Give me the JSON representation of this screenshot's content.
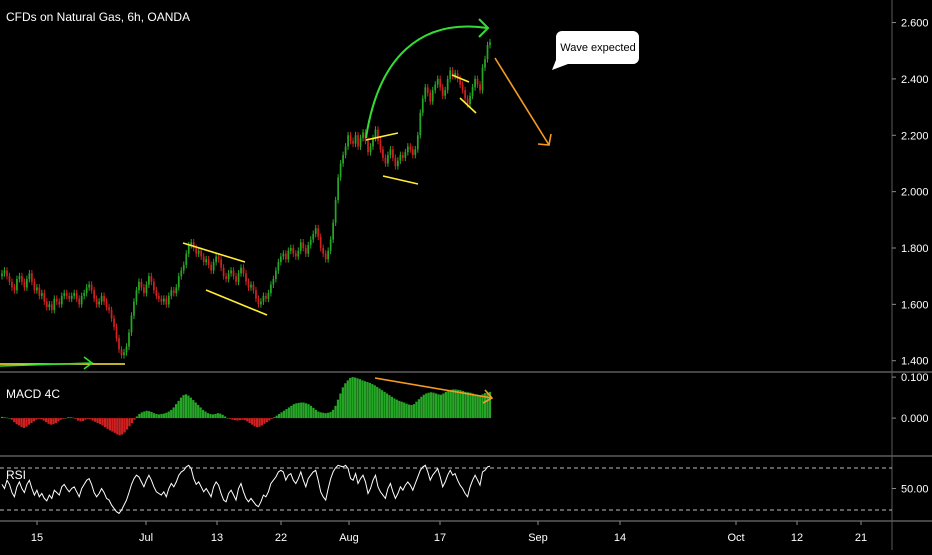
{
  "header": {
    "title": "CFDs on Natural Gas, 6h, OANDA"
  },
  "annotation": {
    "callout_text": "Wave expected"
  },
  "indicators": {
    "macd_label": "MACD 4C",
    "rsi_label": "RSI"
  },
  "colors": {
    "background": "#000000",
    "up": "#26a626",
    "down": "#d02020",
    "pattern_lines": "#ffee33",
    "green_arrow": "#33dd33",
    "orange_arrow": "#f59a23",
    "rsi_line": "#ffffff"
  },
  "chart_data": [
    {
      "type": "candlestick",
      "title": "CFDs on Natural Gas, 6h, OANDA",
      "ylim": [
        1.36,
        2.68
      ],
      "y_ticks": [
        "2.600",
        "2.400",
        "2.200",
        "2.000",
        "1.800",
        "1.600",
        "1.400"
      ],
      "x_ticks": [
        "15",
        "Jul",
        "13",
        "22",
        "Aug",
        "17",
        "Sep",
        "14",
        "Oct",
        "12",
        "21"
      ],
      "close": [
        1.71,
        1.72,
        1.7,
        1.68,
        1.66,
        1.65,
        1.69,
        1.7,
        1.68,
        1.66,
        1.69,
        1.71,
        1.68,
        1.65,
        1.66,
        1.63,
        1.64,
        1.61,
        1.59,
        1.6,
        1.58,
        1.62,
        1.61,
        1.6,
        1.63,
        1.64,
        1.63,
        1.62,
        1.63,
        1.64,
        1.62,
        1.6,
        1.63,
        1.64,
        1.66,
        1.67,
        1.65,
        1.62,
        1.6,
        1.61,
        1.63,
        1.61,
        1.59,
        1.58,
        1.55,
        1.52,
        1.48,
        1.44,
        1.42,
        1.43,
        1.45,
        1.5,
        1.56,
        1.61,
        1.65,
        1.68,
        1.66,
        1.64,
        1.67,
        1.7,
        1.68,
        1.65,
        1.63,
        1.62,
        1.61,
        1.62,
        1.6,
        1.63,
        1.65,
        1.64,
        1.66,
        1.7,
        1.72,
        1.74,
        1.78,
        1.81,
        1.82,
        1.8,
        1.78,
        1.79,
        1.77,
        1.75,
        1.76,
        1.74,
        1.72,
        1.75,
        1.77,
        1.76,
        1.73,
        1.7,
        1.69,
        1.71,
        1.72,
        1.7,
        1.68,
        1.71,
        1.73,
        1.71,
        1.68,
        1.66,
        1.67,
        1.65,
        1.62,
        1.6,
        1.61,
        1.63,
        1.62,
        1.64,
        1.67,
        1.69,
        1.72,
        1.75,
        1.77,
        1.78,
        1.76,
        1.79,
        1.8,
        1.78,
        1.77,
        1.79,
        1.82,
        1.8,
        1.78,
        1.81,
        1.83,
        1.85,
        1.87,
        1.84,
        1.8,
        1.78,
        1.76,
        1.79,
        1.83,
        1.89,
        1.97,
        2.05,
        2.1,
        2.13,
        2.16,
        2.2,
        2.18,
        2.17,
        2.2,
        2.16,
        2.19,
        2.21,
        2.18,
        2.14,
        2.16,
        2.19,
        2.22,
        2.18,
        2.15,
        2.12,
        2.1,
        2.13,
        2.15,
        2.12,
        2.09,
        2.11,
        2.13,
        2.12,
        2.14,
        2.16,
        2.15,
        2.13,
        2.15,
        2.2,
        2.28,
        2.33,
        2.37,
        2.35,
        2.32,
        2.36,
        2.38,
        2.4,
        2.37,
        2.34,
        2.36,
        2.4,
        2.43,
        2.41,
        2.42,
        2.4,
        2.38,
        2.36,
        2.33,
        2.31,
        2.34,
        2.37,
        2.4,
        2.38,
        2.36,
        2.44,
        2.47,
        2.52,
        2.53
      ],
      "macd_histogram": [
        0.003,
        0.002,
        0.001,
        0.0,
        -0.004,
        -0.01,
        -0.015,
        -0.018,
        -0.022,
        -0.024,
        -0.021,
        -0.016,
        -0.012,
        -0.008,
        -0.004,
        -0.002,
        -0.003,
        -0.006,
        -0.01,
        -0.014,
        -0.016,
        -0.015,
        -0.012,
        -0.008,
        -0.004,
        -0.002,
        0.0,
        0.002,
        0.002,
        0.001,
        -0.002,
        -0.006,
        -0.008,
        -0.007,
        -0.004,
        -0.002,
        -0.003,
        -0.006,
        -0.009,
        -0.012,
        -0.015,
        -0.018,
        -0.022,
        -0.026,
        -0.03,
        -0.033,
        -0.036,
        -0.04,
        -0.042,
        -0.04,
        -0.035,
        -0.028,
        -0.02,
        -0.012,
        -0.004,
        0.004,
        0.01,
        0.014,
        0.016,
        0.018,
        0.017,
        0.015,
        0.012,
        0.01,
        0.009,
        0.01,
        0.011,
        0.013,
        0.016,
        0.02,
        0.026,
        0.034,
        0.042,
        0.05,
        0.056,
        0.058,
        0.055,
        0.05,
        0.044,
        0.038,
        0.032,
        0.026,
        0.02,
        0.016,
        0.012,
        0.01,
        0.009,
        0.01,
        0.012,
        0.011,
        0.008,
        0.004,
        0.0,
        -0.002,
        -0.004,
        -0.005,
        -0.006,
        -0.005,
        -0.004,
        -0.005,
        -0.008,
        -0.012,
        -0.016,
        -0.02,
        -0.022,
        -0.021,
        -0.018,
        -0.014,
        -0.01,
        -0.006,
        -0.002,
        0.002,
        0.006,
        0.01,
        0.014,
        0.018,
        0.022,
        0.026,
        0.03,
        0.034,
        0.036,
        0.037,
        0.038,
        0.038,
        0.036,
        0.034,
        0.03,
        0.025,
        0.02,
        0.016,
        0.014,
        0.013,
        0.012,
        0.013,
        0.015,
        0.02,
        0.03,
        0.045,
        0.06,
        0.075,
        0.085,
        0.092,
        0.098,
        0.1,
        0.099,
        0.097,
        0.095,
        0.092,
        0.09,
        0.088,
        0.086,
        0.083,
        0.08,
        0.076,
        0.072,
        0.068,
        0.064,
        0.06,
        0.056,
        0.052,
        0.048,
        0.045,
        0.042,
        0.04,
        0.038,
        0.035,
        0.033,
        0.032,
        0.034,
        0.04,
        0.046,
        0.052,
        0.057,
        0.06,
        0.062,
        0.063,
        0.062,
        0.06,
        0.058,
        0.057,
        0.06,
        0.064,
        0.067,
        0.069,
        0.07,
        0.07,
        0.069,
        0.068,
        0.066,
        0.064,
        0.063,
        0.062,
        0.06,
        0.058,
        0.057,
        0.056,
        0.058,
        0.061,
        0.063,
        0.064
      ],
      "macd_ylim": [
        -0.09,
        0.11
      ],
      "macd_ticks": [
        "0.100",
        "0.000"
      ],
      "rsi": [
        55,
        50,
        60,
        55,
        45,
        40,
        52,
        58,
        50,
        45,
        55,
        60,
        50,
        42,
        48,
        40,
        44,
        38,
        35,
        42,
        38,
        48,
        45,
        42,
        52,
        55,
        50,
        46,
        50,
        52,
        46,
        40,
        50,
        55,
        60,
        62,
        55,
        45,
        40,
        44,
        50,
        45,
        38,
        36,
        30,
        26,
        22,
        20,
        24,
        30,
        36,
        45,
        55,
        62,
        66,
        64,
        58,
        52,
        60,
        66,
        60,
        52,
        46,
        44,
        42,
        46,
        40,
        50,
        56,
        52,
        58,
        66,
        70,
        72,
        76,
        78,
        74,
        62,
        55,
        58,
        52,
        46,
        50,
        45,
        40,
        52,
        58,
        54,
        44,
        36,
        34,
        44,
        48,
        42,
        36,
        50,
        56,
        46,
        38,
        34,
        38,
        34,
        30,
        28,
        34,
        42,
        40,
        46,
        56,
        60,
        64,
        70,
        72,
        70,
        60,
        66,
        68,
        60,
        56,
        62,
        70,
        60,
        52,
        62,
        66,
        70,
        72,
        60,
        46,
        40,
        36,
        50,
        62,
        70,
        75,
        78,
        77,
        76,
        78,
        74,
        62,
        60,
        68,
        56,
        62,
        66,
        58,
        44,
        50,
        60,
        66,
        52,
        46,
        42,
        38,
        50,
        56,
        46,
        38,
        44,
        52,
        48,
        54,
        58,
        54,
        48,
        56,
        64,
        72,
        76,
        78,
        70,
        60,
        66,
        70,
        74,
        64,
        52,
        58,
        66,
        72,
        66,
        68,
        60,
        54,
        50,
        44,
        40,
        52,
        60,
        66,
        60,
        54,
        70,
        72,
        76,
        77
      ],
      "rsi_ylim": [
        12,
        88
      ],
      "rsi_ticks": [
        "50.00"
      ]
    }
  ]
}
